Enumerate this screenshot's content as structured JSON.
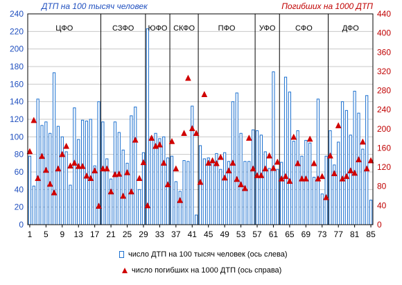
{
  "chart_data": {
    "type": "bar",
    "title_left": "ДТП на 100 тысяч человек",
    "title_right": "Погибших на 1000 ДТП",
    "colors": {
      "bars": "#1a6fcf",
      "markers": "#d00000",
      "right_axis_text": "#c00000",
      "left_title": "#1f4fbf",
      "grid": "#c8c8c8"
    },
    "ylim_left": [
      0,
      240
    ],
    "yticks_left": [
      "0",
      "20",
      "40",
      "60",
      "80",
      "100",
      "120",
      "140",
      "160",
      "180",
      "200",
      "220",
      "240"
    ],
    "ylim_right": [
      0,
      440
    ],
    "yticks_right": [
      "0",
      "40",
      "80",
      "120",
      "160",
      "200",
      "240",
      "280",
      "320",
      "360",
      "400",
      "440"
    ],
    "xticks": [
      "1",
      "5",
      "9",
      "13",
      "17",
      "21",
      "25",
      "29",
      "33",
      "37",
      "41",
      "45",
      "49",
      "53",
      "57",
      "61",
      "65",
      "69",
      "73",
      "77",
      "81",
      "85"
    ],
    "x": [
      1,
      2,
      3,
      4,
      5,
      6,
      7,
      8,
      9,
      10,
      11,
      12,
      13,
      14,
      15,
      16,
      17,
      18,
      19,
      20,
      21,
      22,
      23,
      24,
      25,
      26,
      27,
      28,
      29,
      30,
      31,
      32,
      33,
      34,
      35,
      36,
      37,
      38,
      39,
      40,
      41,
      42,
      43,
      44,
      45,
      46,
      47,
      48,
      49,
      50,
      51,
      52,
      53,
      54,
      55,
      56,
      57,
      58,
      59,
      60,
      61,
      62,
      63,
      64,
      65,
      66,
      67,
      68,
      69,
      70,
      71,
      72,
      73,
      74,
      75,
      76,
      77,
      78,
      79,
      80,
      81,
      82,
      83,
      84,
      85
    ],
    "regions": [
      {
        "label": "ЦФО",
        "end": 18
      },
      {
        "label": "СЗФО",
        "end": 29
      },
      {
        "label": "ЮФО",
        "end": 35
      },
      {
        "label": "СКФО",
        "end": 42
      },
      {
        "label": "ПФО",
        "end": 56
      },
      {
        "label": "УФО",
        "end": 62
      },
      {
        "label": "СФО",
        "end": 74
      },
      {
        "label": "ДФО",
        "end": 85
      }
    ],
    "series": [
      {
        "name": "число ДТП на 100 тысяч человек (ось слева)",
        "axis": "left",
        "values": [
          78,
          44,
          143,
          113,
          117,
          104,
          173,
          112,
          100,
          83,
          45,
          133,
          97,
          119,
          118,
          120,
          67,
          140,
          117,
          75,
          52,
          117,
          105,
          85,
          70,
          124,
          134,
          40,
          82,
          223,
          100,
          104,
          98,
          100,
          76,
          78,
          49,
          38,
          73,
          72,
          135,
          11,
          90,
          75,
          76,
          72,
          81,
          63,
          82,
          72,
          140,
          150,
          104,
          72,
          72,
          108,
          107,
          102,
          83,
          64,
          174,
          63,
          71,
          168,
          151,
          95,
          107,
          78,
          96,
          93,
          54,
          143,
          35,
          78,
          107,
          68,
          94,
          140,
          130,
          102,
          152,
          127,
          86,
          147,
          28
        ],
        "values_note": "bar values approximate (read from gridlines)"
      },
      {
        "name": "число погибших на 1000 ДТП  (ось справа)",
        "axis": "right",
        "values": [
          152,
          217,
          96,
          142,
          113,
          84,
          66,
          116,
          146,
          163,
          122,
          128,
          121,
          121,
          101,
          96,
          112,
          38,
          116,
          116,
          68,
          104,
          105,
          59,
          108,
          68,
          176,
          96,
          129,
          39,
          180,
          163,
          166,
          128,
          83,
          173,
          116,
          50,
          190,
          305,
          200,
          190,
          88,
          271,
          128,
          133,
          127,
          140,
          97,
          112,
          128,
          94,
          83,
          75,
          180,
          116,
          102,
          102,
          116,
          143,
          117,
          130,
          95,
          100,
          90,
          182,
          127,
          95,
          95,
          178,
          127,
          95,
          100,
          56,
          143,
          106,
          206,
          95,
          100,
          112,
          107,
          135,
          172,
          116,
          133
        ]
      }
    ],
    "legend": [
      {
        "label": "число ДТП на 100 тысяч человек (ось слева)",
        "marker": "bar"
      },
      {
        "label": "число погибших на 1000 ДТП  (ось справа)",
        "marker": "triangle"
      }
    ]
  }
}
